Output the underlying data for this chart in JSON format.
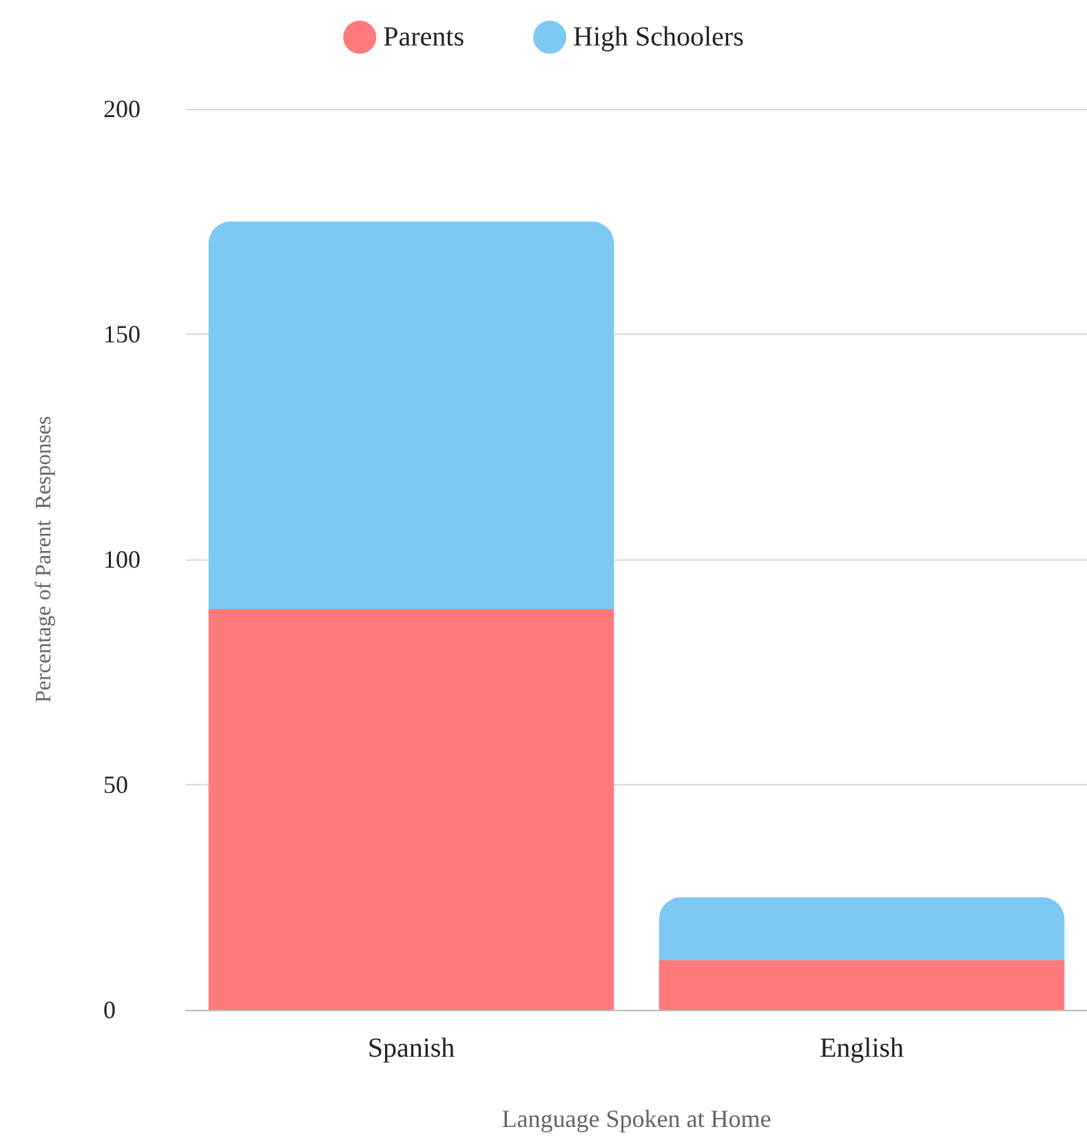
{
  "chart_data": {
    "type": "bar",
    "stacked": true,
    "xlabel": "Language Spoken at Home",
    "ylabel": "Percentage of Parent  Responses",
    "categories": [
      "Spanish",
      "English"
    ],
    "series": [
      {
        "name": "Parents",
        "color": "#ff7b7b",
        "values": [
          89,
          11
        ]
      },
      {
        "name": "High Schoolers",
        "color": "#7ec8f4",
        "values": [
          86,
          14
        ]
      }
    ],
    "ylim": [
      0,
      200
    ],
    "yticks": [
      0,
      50,
      100,
      150,
      200
    ],
    "grid": "y",
    "legend": "top"
  }
}
